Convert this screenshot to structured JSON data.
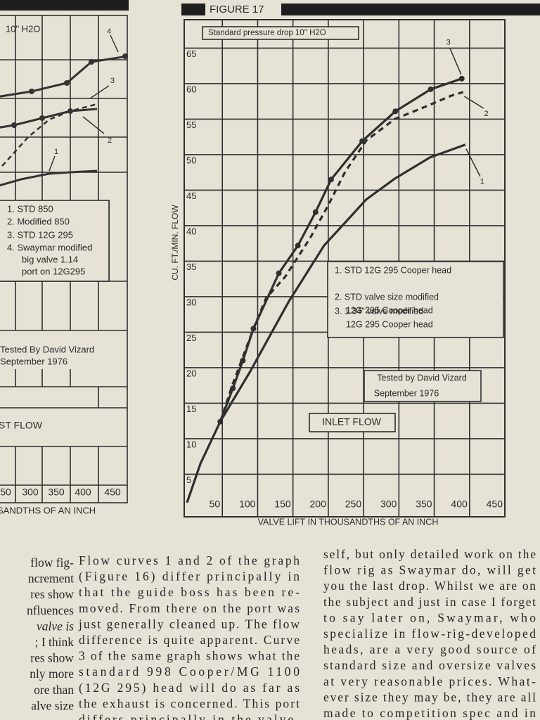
{
  "figure_16": {
    "subtitle": "10\" H2O",
    "curve_labels": [
      "4",
      "3",
      "2",
      "1"
    ],
    "legend": [
      "1. STD 850",
      "2. Modified 850",
      "3. STD 12G 295",
      "4. Swaymar modified",
      "big valve 1.14",
      "port on 12G295"
    ],
    "tested_by": "Tested By David Vizard",
    "date": "September 1976",
    "flow_label": "ST FLOW",
    "tick_labels": [
      "50",
      "300",
      "350",
      "400",
      "450"
    ],
    "xlabel": "SANDTHS OF AN INCH"
  },
  "chart_data": {
    "type": "line",
    "title": "FIGURE 17",
    "subtitle": "Standard pressure drop 10\" H2O",
    "xlabel": "VALVE LIFT IN THOUSANDTHS OF AN INCH",
    "ylabel": "CU. FT./MIN. FLOW",
    "xlim": [
      0,
      450
    ],
    "ylim": [
      -1,
      69
    ],
    "xticks": [
      50,
      100,
      150,
      200,
      250,
      300,
      350,
      400,
      450
    ],
    "yticks": [
      5,
      10,
      15,
      20,
      25,
      30,
      35,
      40,
      45,
      50,
      55,
      60,
      65
    ],
    "grid": true,
    "series": [
      {
        "name": "1. STD 12G 295 Cooper head",
        "label": "1",
        "color": "#2f2f2f",
        "style": "solid",
        "markers": false,
        "x": [
          0,
          19,
          47,
          89,
          144,
          194,
          254,
          294,
          344,
          394
        ],
        "values": [
          1,
          6.5,
          12.4,
          19.4,
          29.3,
          37.2,
          43.7,
          46.6,
          49.6,
          51.4
        ]
      },
      {
        "name": "2. STD valve size modified",
        "name_line2": "12G 295 Cooper head",
        "label": "2",
        "color": "#2f2f2f",
        "style": "dashed",
        "markers": false,
        "x": [
          47,
          64,
          94,
          112,
          139,
          174,
          199,
          224,
          254,
          294,
          334,
          374,
          391
        ],
        "values": [
          12.4,
          17.5,
          25.5,
          29.8,
          32.8,
          38.2,
          42.7,
          47.6,
          52,
          55,
          56.6,
          58.3,
          58.8
        ]
      },
      {
        "name": "3. 1.34\" valve modified",
        "name_line2": "12G 295 Cooper head",
        "label": "3",
        "color": "#2f2f2f",
        "style": "solid",
        "markers": true,
        "x": [
          47,
          65,
          79,
          94,
          130,
          157,
          182,
          204,
          248,
          295,
          345,
          389
        ],
        "values": [
          12.4,
          17.1,
          21,
          25.5,
          33.3,
          37.2,
          41.9,
          46.5,
          51.9,
          56.1,
          59.2,
          60.7
        ]
      }
    ],
    "tested_by": "Tested by David Vizard",
    "date": "September 1976",
    "flow_label": "INLET FLOW"
  },
  "body": {
    "columns": [
      [
        "flow fig-",
        "ncrement",
        "res show",
        "nfluences",
        "valve is",
        "; I think",
        "res show",
        "nly more",
        "ore than",
        "alve size"
      ],
      [
        "Flow curves 1 and 2 of the graph",
        "(Figure 16) differ principally in",
        "that the guide boss has been re-",
        "moved. From there on the port was",
        "just generally cleaned up. The flow",
        "difference is quite apparent. Curve",
        "3 of the same graph shows what the",
        "standard 998 Cooper/MG 1100",
        "(12G 295) head will do as far as",
        "the exhaust is concerned. This port",
        "differs principally in the valve-"
      ],
      [
        "self, but only detailed work on the",
        "flow rig as Swaymar do, will get",
        "you the last drop. Whilst we are on",
        "the subject and just in case I forget",
        "to say later on, Swaymar, who",
        "specialize in flow-rig-developed",
        "heads, are a very good source of",
        "standard size and oversize valves",
        "at very reasonable prices. What-",
        "ever size they may be, they are all",
        "made to competition spec and in"
      ]
    ]
  }
}
